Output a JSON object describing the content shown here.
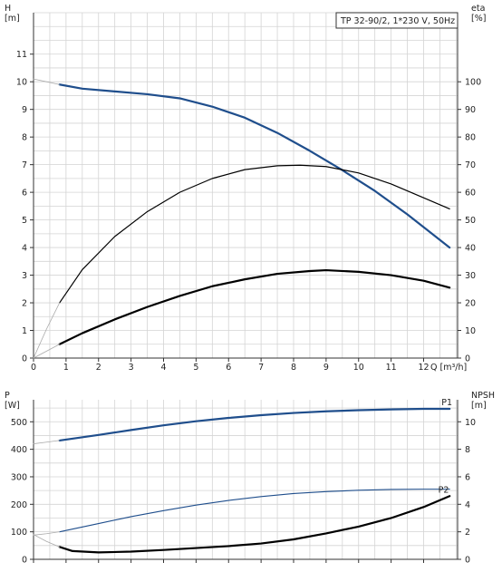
{
  "chart_data": [
    {
      "type": "line",
      "legend_label": "TP 32-90/2, 1*230 V, 50Hz",
      "corner_text": "",
      "xlabel": "Q [m³/h]",
      "ylabel_left_line1": "H",
      "ylabel_left_line2": "[m]",
      "ylabel_right_line1": "eta",
      "ylabel_right_line2": "[%]",
      "xlim": [
        0,
        13.3
      ],
      "ylim_left": [
        0,
        12.5
      ],
      "ylim_right": [
        0,
        125
      ],
      "x_ticks": [
        0,
        1,
        2,
        3,
        4,
        5,
        6,
        7,
        8,
        9,
        10,
        11,
        12
      ],
      "x_tick_labels": [
        "0",
        "1",
        "2",
        "3",
        "4",
        "5",
        "6",
        "7",
        "8",
        "9",
        "10",
        "11",
        "12"
      ],
      "y_left_ticks": [
        0,
        1,
        2,
        3,
        4,
        5,
        6,
        7,
        8,
        9,
        10,
        11
      ],
      "y_left_tick_labels": [
        "0",
        "1",
        "2",
        "3",
        "4",
        "5",
        "6",
        "7",
        "8",
        "9",
        "10",
        "11"
      ],
      "y_right_ticks": [
        0,
        10,
        20,
        30,
        40,
        50,
        60,
        70,
        80,
        90,
        100
      ],
      "y_right_tick_labels": [
        "0",
        "10",
        "20",
        "30",
        "40",
        "50",
        "60",
        "70",
        "80",
        "90",
        "100"
      ],
      "grid": true,
      "series": [
        {
          "axis": "left",
          "color": "#1f4e8c",
          "width": 2.2,
          "x": [
            0.8,
            1.5,
            2.5,
            3.5,
            4.5,
            5.5,
            6.5,
            7.5,
            8.5,
            9.5,
            10.5,
            11.5,
            12.8
          ],
          "y": [
            9.9,
            9.75,
            9.65,
            9.55,
            9.4,
            9.1,
            8.7,
            8.15,
            7.5,
            6.8,
            6.05,
            5.2,
            4.0
          ]
        },
        {
          "axis": "left",
          "color": "#aaaaaa",
          "width": 0.8,
          "x": [
            0,
            0.4,
            0.8
          ],
          "y": [
            10.1,
            10.0,
            9.9
          ]
        },
        {
          "axis": "right",
          "color": "#000000",
          "width": 1.2,
          "x": [
            0.8,
            1.5,
            2.5,
            3.5,
            4.5,
            5.5,
            6.5,
            7.5,
            8.2,
            9,
            10,
            11,
            12,
            12.8
          ],
          "y": [
            20,
            32,
            44,
            53,
            60,
            65,
            68.2,
            69.6,
            69.8,
            69.3,
            67,
            63,
            58,
            54
          ]
        },
        {
          "axis": "right",
          "color": "#aaaaaa",
          "width": 0.8,
          "x": [
            0,
            0.4,
            0.8
          ],
          "y": [
            0,
            10.5,
            20
          ]
        },
        {
          "axis": "left",
          "color": "#000000",
          "width": 2.2,
          "x": [
            0.8,
            1.5,
            2.5,
            3.5,
            4.5,
            5.5,
            6.5,
            7.5,
            8.5,
            9,
            10,
            11,
            12,
            12.8
          ],
          "y": [
            0.5,
            0.9,
            1.4,
            1.85,
            2.25,
            2.6,
            2.85,
            3.05,
            3.15,
            3.18,
            3.12,
            3.0,
            2.8,
            2.55
          ]
        },
        {
          "axis": "left",
          "color": "#aaaaaa",
          "width": 0.8,
          "x": [
            0,
            0.4,
            0.8
          ],
          "y": [
            0,
            0.25,
            0.5
          ]
        }
      ]
    },
    {
      "type": "line",
      "xlabel": "",
      "ylabel_left_line1": "P",
      "ylabel_left_line2": "[W]",
      "ylabel_right_line1": "NPSH",
      "ylabel_right_line2": "[m]",
      "xlim": [
        0,
        13.3
      ],
      "ylim_left": [
        0,
        580
      ],
      "ylim_right": [
        0,
        11.6
      ],
      "x_ticks": [
        0,
        1,
        2,
        3,
        4,
        5,
        6,
        7,
        8,
        9,
        10,
        11,
        12
      ],
      "y_left_ticks": [
        0,
        100,
        200,
        300,
        400,
        500
      ],
      "y_left_tick_labels": [
        "0",
        "100",
        "200",
        "300",
        "400",
        "500"
      ],
      "y_right_ticks": [
        0,
        2,
        4,
        6,
        8,
        10
      ],
      "y_right_tick_labels": [
        "0",
        "2",
        "4",
        "6",
        "8",
        "10"
      ],
      "grid": true,
      "series_labels": [
        {
          "text": "P1",
          "x": 12.55,
          "y": 560
        },
        {
          "text": "P2",
          "x": 12.45,
          "y": 242
        }
      ],
      "series": [
        {
          "axis": "left",
          "color": "#1f4e8c",
          "width": 2.2,
          "x": [
            0.8,
            2,
            3,
            4,
            5,
            6,
            7,
            8,
            9,
            10,
            11,
            12,
            12.8
          ],
          "y": [
            432,
            452,
            470,
            487,
            502,
            514,
            524,
            532,
            538,
            542,
            545,
            547,
            547
          ]
        },
        {
          "axis": "left",
          "color": "#aaaaaa",
          "width": 0.8,
          "x": [
            0,
            0.4,
            0.8
          ],
          "y": [
            420,
            426,
            432
          ]
        },
        {
          "axis": "left",
          "color": "#1f4e8c",
          "width": 1.1,
          "x": [
            0.8,
            2,
            3,
            4,
            5,
            6,
            7,
            8,
            9,
            10,
            11,
            12,
            12.8
          ],
          "y": [
            100,
            130,
            155,
            177,
            197,
            214,
            228,
            239,
            246,
            251,
            254,
            255,
            255
          ]
        },
        {
          "axis": "left",
          "color": "#aaaaaa",
          "width": 0.8,
          "x": [
            0,
            0.4,
            0.8
          ],
          "y": [
            88,
            93,
            100
          ]
        },
        {
          "axis": "right",
          "color": "#000000",
          "width": 2.2,
          "x": [
            0.8,
            1.2,
            2,
            3,
            4,
            5,
            6,
            7,
            8,
            9,
            10,
            11,
            12,
            12.8
          ],
          "y": [
            0.9,
            0.6,
            0.5,
            0.56,
            0.68,
            0.82,
            0.96,
            1.15,
            1.45,
            1.88,
            2.38,
            3.0,
            3.8,
            4.6
          ]
        },
        {
          "axis": "right",
          "color": "#aaaaaa",
          "width": 0.8,
          "x": [
            0,
            0.4,
            0.8
          ],
          "y": [
            1.8,
            1.3,
            0.9
          ]
        }
      ]
    }
  ]
}
